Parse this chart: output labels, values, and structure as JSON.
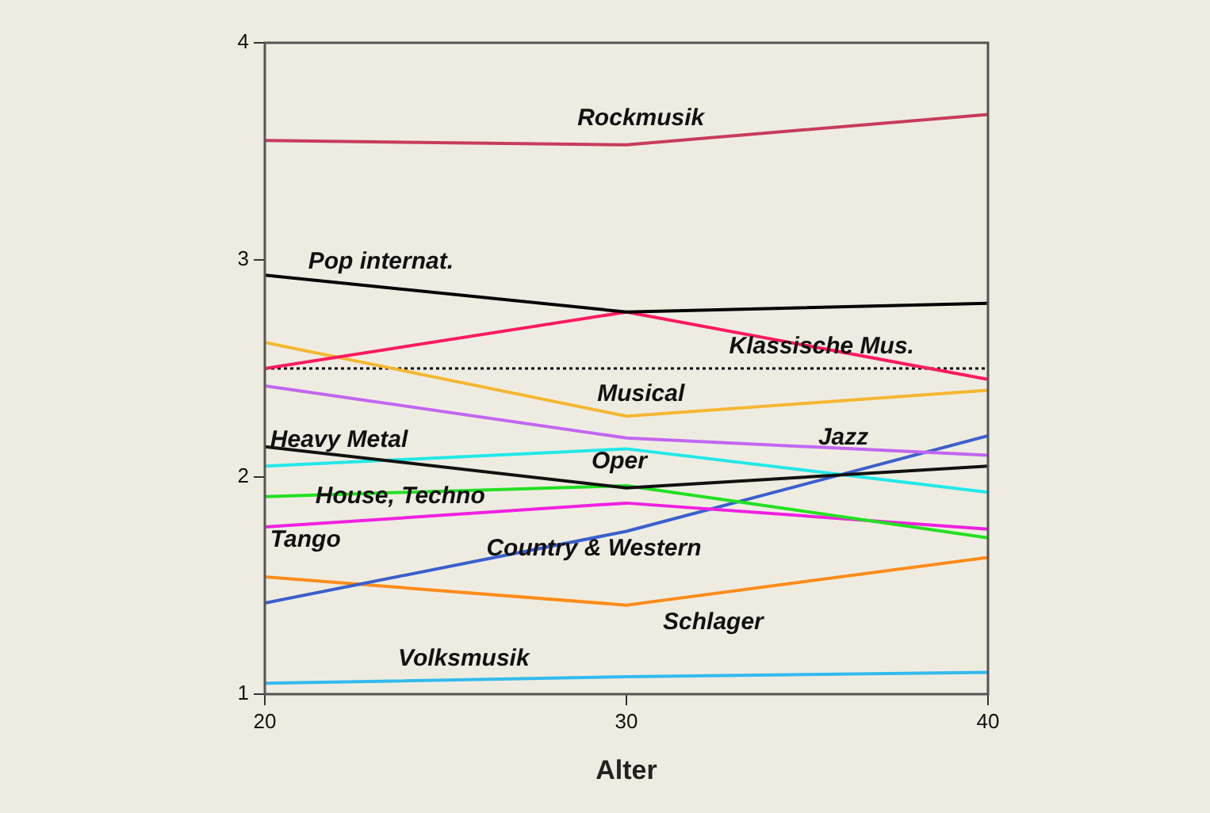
{
  "chart_data": {
    "type": "line",
    "xlabel": "Alter",
    "x": [
      20,
      30,
      40
    ],
    "xlim": [
      20,
      40
    ],
    "xticks": [
      20,
      30,
      40
    ],
    "ylim": [
      1,
      4
    ],
    "yticks": [
      1,
      2,
      3,
      4
    ],
    "grid": false,
    "legend": false,
    "marker": "none",
    "line_style": "solid",
    "ref_lines": [
      {
        "axis": "y",
        "value": 2.5,
        "color": "#000000",
        "line_style": "dotted"
      }
    ],
    "series": [
      {
        "name": "Rockmusik",
        "color": "#c83c5a",
        "values": [
          3.55,
          3.53,
          3.67
        ]
      },
      {
        "name": "Pop internat.",
        "color": "#000000",
        "values": [
          2.93,
          2.76,
          2.8
        ]
      },
      {
        "name": "Klassische Mus.",
        "color": "#ff1a5e",
        "values": [
          2.5,
          2.76,
          2.45
        ]
      },
      {
        "name": "Musical",
        "color": "#f5b731",
        "values": [
          2.62,
          2.28,
          2.4
        ]
      },
      {
        "name": "Jazz",
        "color": "#c266f0",
        "values": [
          2.42,
          2.18,
          2.1
        ]
      },
      {
        "name": "Heavy Metal",
        "color": "#111111",
        "values": [
          2.14,
          1.95,
          2.05
        ]
      },
      {
        "name": "Oper",
        "color": "#22e8e8",
        "values": [
          2.05,
          2.13,
          1.93
        ]
      },
      {
        "name": "House, Techno",
        "color": "#22e022",
        "values": [
          1.91,
          1.96,
          1.72
        ]
      },
      {
        "name": "Tango",
        "color": "#f020e0",
        "values": [
          1.77,
          1.88,
          1.76
        ]
      },
      {
        "name": "Country & Western",
        "color": "#3a5fcd",
        "values": [
          1.42,
          1.75,
          2.19
        ]
      },
      {
        "name": "Schlager",
        "color": "#ff8c1a",
        "values": [
          1.54,
          1.41,
          1.63
        ]
      },
      {
        "name": "Volksmusik",
        "color": "#33bbee",
        "values": [
          1.05,
          1.08,
          1.1
        ]
      }
    ]
  }
}
